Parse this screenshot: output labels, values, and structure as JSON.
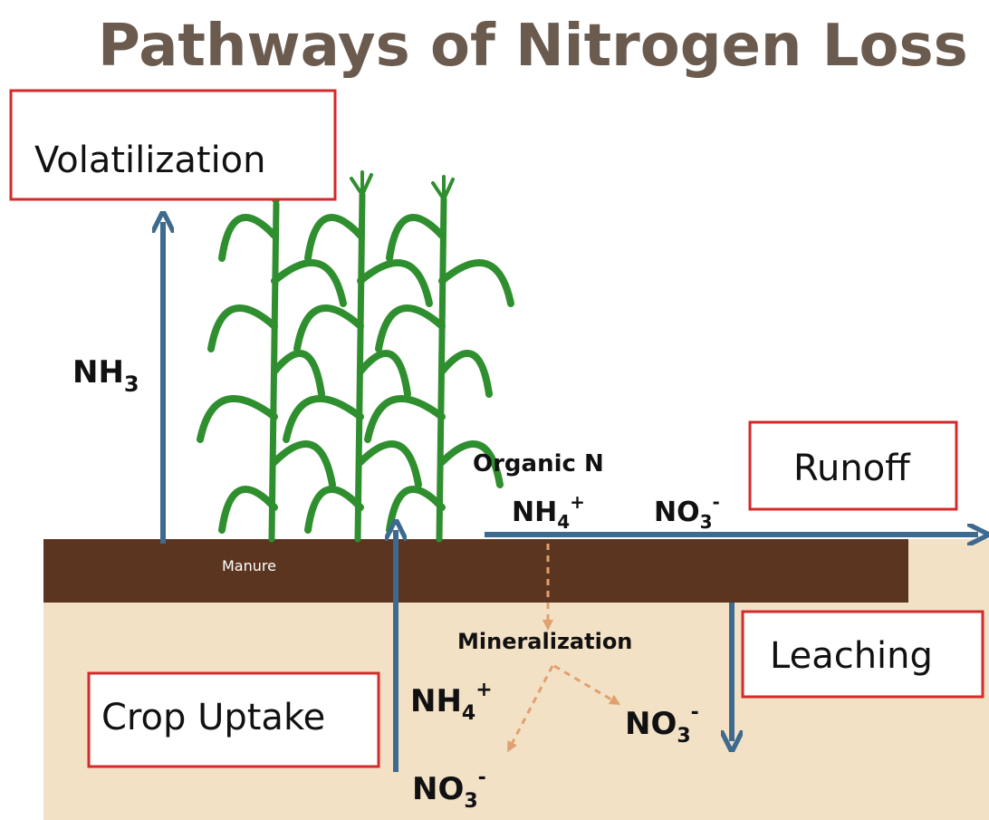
{
  "title": "Pathways of Nitrogen Loss",
  "boxes": {
    "volatilization": "Volatilization",
    "runoff": "Runoff",
    "leaching": "Leaching",
    "crop_uptake": "Crop Uptake"
  },
  "labels": {
    "manure": "Manure",
    "organic_n": "Organic N",
    "mineralization": "Mineralization",
    "nh3_air": {
      "base": "NH",
      "sub": "3"
    },
    "nh4_surface": {
      "base": "NH",
      "sub": "4",
      "sup": "+"
    },
    "no3_surface": {
      "base": "NO",
      "sub": "3",
      "sup": "-"
    },
    "nh4_soil": {
      "base": "NH",
      "sub": "4",
      "sup": "+"
    },
    "no3_soil_right": {
      "base": "NO",
      "sub": "3",
      "sup": "-"
    },
    "no3_soil_bottom": {
      "base": "NO",
      "sub": "3",
      "sup": "-"
    }
  }
}
